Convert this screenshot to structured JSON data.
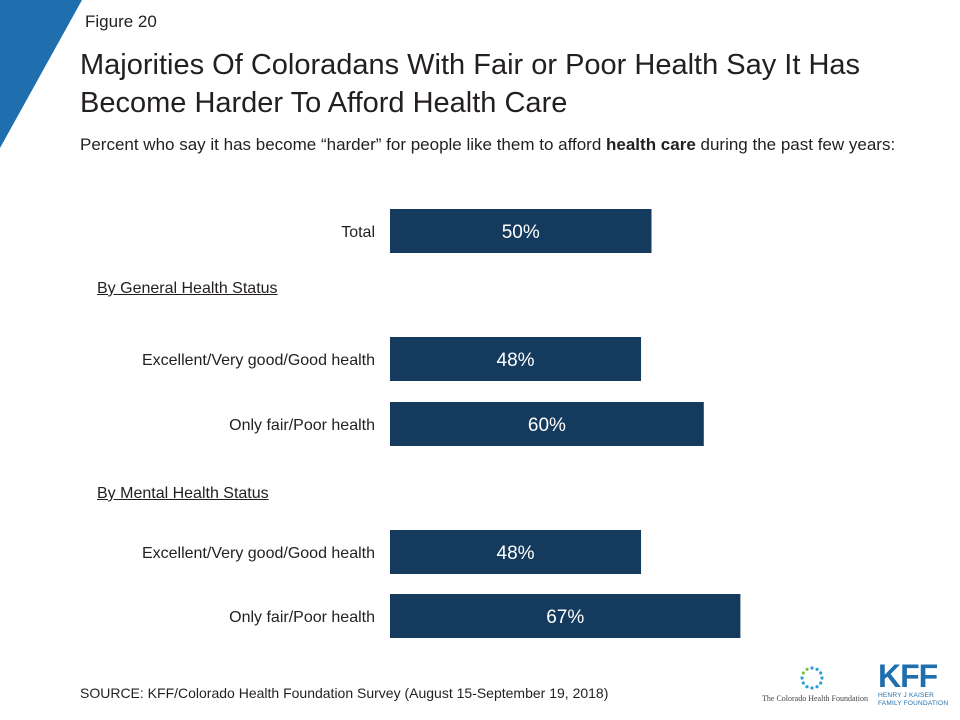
{
  "header": {
    "figure_label": "Figure 20",
    "title": "Majorities Of Coloradans With Fair or Poor Health Say It Has Become Harder To Afford Health Care",
    "subtitle_pre": "Percent who say it has become “harder” for people like them to afford ",
    "subtitle_bold": "health care",
    "subtitle_post": " during the past few years:"
  },
  "colors": {
    "bar": "#143b5e",
    "accent": "#1f6fae",
    "text": "#231f20"
  },
  "sections": {
    "general": "By General Health Status",
    "mental": "By Mental Health Status"
  },
  "chart_data": {
    "type": "bar",
    "orientation": "horizontal",
    "title": "",
    "xlabel": "",
    "ylabel": "",
    "xlim": [
      0,
      100
    ],
    "grid": false,
    "legend": "none",
    "categories": [
      "Total",
      "Excellent/Very good/Good health",
      "Only fair/Poor health",
      "Excellent/Very good/Good health",
      "Only fair/Poor health"
    ],
    "groups": [
      "",
      "By General Health Status",
      "By General Health Status",
      "By Mental Health Status",
      "By Mental Health Status"
    ],
    "values": [
      50,
      48,
      60,
      48,
      67
    ],
    "value_labels": [
      "50%",
      "48%",
      "60%",
      "48%",
      "67%"
    ]
  },
  "footer": {
    "source": "SOURCE: KFF/Colorado Health Foundation Survey (August 15-September 19, 2018)",
    "chf_logo_text": "The Colorado Health Foundation",
    "kff_logo_mark": "KFF",
    "kff_logo_line1": "HENRY J KAISER",
    "kff_logo_line2": "FAMILY FOUNDATION"
  }
}
